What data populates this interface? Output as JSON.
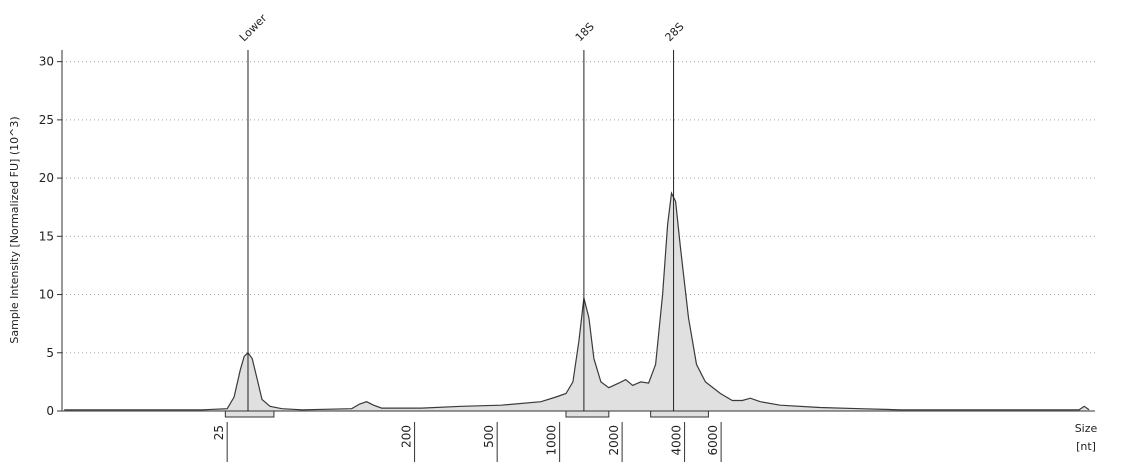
{
  "chart_data": {
    "type": "area",
    "y_label": "Sample Intensity [Normalized FU] (10^3)",
    "x_label": "Size",
    "x_unit": "[nt]",
    "xscale": "log",
    "xlim": [
      4,
      380000
    ],
    "xticks": [
      25,
      200,
      500,
      1000,
      2000,
      4000,
      6000
    ],
    "ylim": [
      0,
      31
    ],
    "yticks": [
      0,
      5,
      10,
      15,
      20,
      25,
      30
    ],
    "grid": true,
    "color": "#e0e0e0",
    "line_color": "#3a3a3a",
    "x": [
      4.1,
      19,
      25,
      27,
      28.9,
      30.2,
      31.5,
      33,
      34.8,
      36.8,
      40.2,
      45.9,
      57.3,
      99.6,
      108.8,
      117.5,
      127,
      138.7,
      215.9,
      336,
      523,
      813,
      960,
      1073,
      1159,
      1239,
      1309,
      1383,
      1462,
      1580,
      1726,
      1927,
      2082,
      2250,
      2457,
      2685,
      2900,
      3135,
      3313,
      3461,
      3619,
      3824,
      4179,
      4565,
      5042,
      5951,
      6795,
      7590,
      8297,
      9263,
      11553,
      17980,
      27980,
      43540,
      319000,
      337000,
      356000
    ],
    "values": [
      0.1,
      0.1,
      0.2,
      1.2,
      3.5,
      4.7,
      5.0,
      4.5,
      2.8,
      1.0,
      0.4,
      0.2,
      0.1,
      0.2,
      0.6,
      0.8,
      0.5,
      0.25,
      0.25,
      0.4,
      0.5,
      0.8,
      1.2,
      1.5,
      2.5,
      6,
      9.7,
      8,
      4.5,
      2.5,
      2.0,
      2.4,
      2.7,
      2.2,
      2.5,
      2.4,
      4,
      10,
      16,
      18.7,
      18,
      14,
      8,
      4,
      2.5,
      1.5,
      0.9,
      0.9,
      1.1,
      0.8,
      0.5,
      0.3,
      0.2,
      0.1,
      0.1,
      0.4,
      0.1
    ],
    "peaks": [
      {
        "label": "Lower",
        "x": 31.5
      },
      {
        "label": "18S",
        "x": 1309
      },
      {
        "label": "28S",
        "x": 3540
      }
    ],
    "regions": [
      [
        24.5,
        42
      ],
      [
        1073,
        1726
      ],
      [
        2745,
        5212
      ]
    ]
  }
}
